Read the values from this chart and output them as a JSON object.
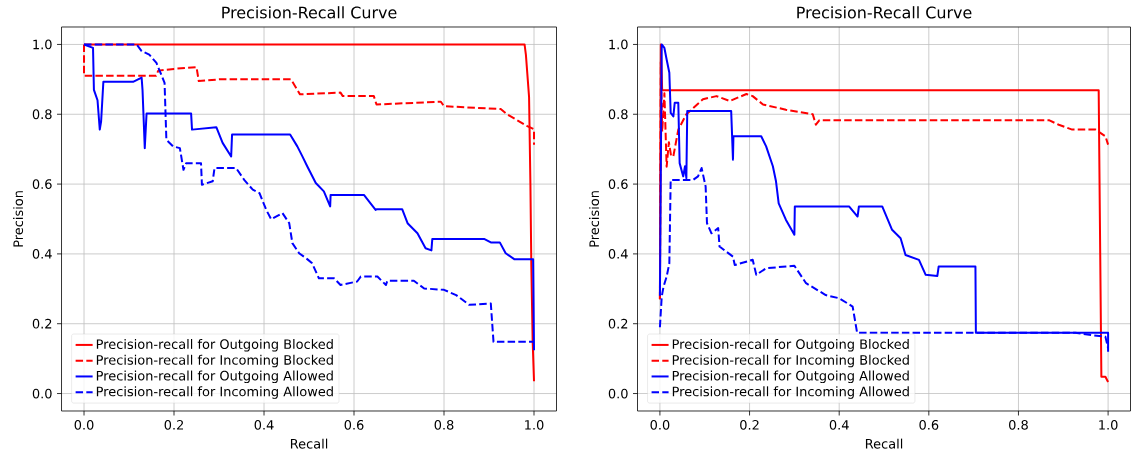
{
  "chart_data": [
    {
      "type": "line",
      "title": "Precision-Recall Curve",
      "xlabel": "Recall",
      "ylabel": "Precision",
      "xlim": [
        -0.05,
        1.05
      ],
      "ylim": [
        -0.05,
        1.05
      ],
      "xticks": [
        {
          "value": 0,
          "label": "0.0"
        },
        {
          "value": 0.2,
          "label": "0.2"
        },
        {
          "value": 0.4,
          "label": "0.4"
        },
        {
          "value": 0.6,
          "label": "0.6"
        },
        {
          "value": 0.8,
          "label": "0.8"
        },
        {
          "value": 1,
          "label": "1.0"
        }
      ],
      "yticks": [
        {
          "value": 0,
          "label": "0.0"
        },
        {
          "value": 0.2,
          "label": "0.2"
        },
        {
          "value": 0.4,
          "label": "0.4"
        },
        {
          "value": 0.6,
          "label": "0.6"
        },
        {
          "value": 0.8,
          "label": "0.8"
        },
        {
          "value": 1,
          "label": "1.0"
        }
      ],
      "grid": true,
      "legend": "bottom left",
      "marker": "none",
      "series": [
        {
          "name": "Precision-recall for Outgoing Blocked",
          "color": "#ff0000",
          "line_style": "solid",
          "x": [
            0,
            0.979,
            0.982,
            0.989,
            0.992,
            0.994,
            0.997,
            1.0
          ],
          "values": [
            1.0,
            1.0,
            0.97,
            0.85,
            0.6,
            0.37,
            0.15,
            0.035
          ]
        },
        {
          "name": "Precision-recall for Incoming Blocked",
          "color": "#ff0000",
          "line_style": "dashed",
          "x": [
            0,
            0,
            0.16,
            0.165,
            0.2,
            0.25,
            0.255,
            0.3,
            0.46,
            0.48,
            0.57,
            0.575,
            0.644,
            0.65,
            0.793,
            0.8,
            0.926,
            0.94,
            0.985,
            1.0,
            1.0
          ],
          "values": [
            1.0,
            0.91,
            0.91,
            0.925,
            0.93,
            0.935,
            0.895,
            0.9,
            0.9,
            0.857,
            0.862,
            0.852,
            0.852,
            0.828,
            0.836,
            0.823,
            0.815,
            0.8,
            0.766,
            0.757,
            0.713
          ]
        },
        {
          "name": "Precision-recall for Outgoing Allowed",
          "color": "#0000ff",
          "line_style": "solid",
          "x": [
            0,
            0.02,
            0.022,
            0.03,
            0.035,
            0.038,
            0.043,
            0.109,
            0.128,
            0.13,
            0.135,
            0.139,
            0.238,
            0.24,
            0.294,
            0.308,
            0.327,
            0.329,
            0.458,
            0.474,
            0.485,
            0.496,
            0.515,
            0.533,
            0.547,
            0.548,
            0.622,
            0.648,
            0.65,
            0.707,
            0.719,
            0.741,
            0.759,
            0.772,
            0.774,
            0.889,
            0.904,
            0.924,
            0.937,
            0.956,
            0.998,
            1.0
          ],
          "values": [
            1.0,
            0.99,
            0.87,
            0.84,
            0.756,
            0.78,
            0.893,
            0.893,
            0.905,
            0.87,
            0.703,
            0.802,
            0.802,
            0.756,
            0.763,
            0.718,
            0.679,
            0.742,
            0.742,
            0.708,
            0.68,
            0.651,
            0.603,
            0.579,
            0.536,
            0.569,
            0.569,
            0.526,
            0.528,
            0.528,
            0.488,
            0.459,
            0.416,
            0.41,
            0.443,
            0.443,
            0.433,
            0.433,
            0.402,
            0.385,
            0.385,
            0.124
          ]
        },
        {
          "name": "Precision-recall for Incoming Allowed",
          "color": "#0000ff",
          "line_style": "dashed",
          "x": [
            0,
            0.117,
            0.128,
            0.145,
            0.161,
            0.179,
            0.183,
            0.198,
            0.213,
            0.221,
            0.227,
            0.26,
            0.262,
            0.286,
            0.29,
            0.338,
            0.356,
            0.375,
            0.39,
            0.405,
            0.416,
            0.441,
            0.456,
            0.463,
            0.478,
            0.496,
            0.507,
            0.522,
            0.556,
            0.57,
            0.607,
            0.615,
            0.652,
            0.671,
            0.674,
            0.733,
            0.756,
            0.8,
            0.827,
            0.856,
            0.904,
            0.91,
            1.0
          ],
          "values": [
            1.0,
            1.0,
            0.981,
            0.971,
            0.947,
            0.89,
            0.727,
            0.708,
            0.703,
            0.641,
            0.66,
            0.66,
            0.598,
            0.608,
            0.646,
            0.646,
            0.612,
            0.584,
            0.574,
            0.526,
            0.499,
            0.517,
            0.488,
            0.431,
            0.402,
            0.385,
            0.373,
            0.33,
            0.33,
            0.311,
            0.321,
            0.335,
            0.335,
            0.311,
            0.323,
            0.323,
            0.301,
            0.297,
            0.282,
            0.254,
            0.258,
            0.148,
            0.148
          ]
        }
      ]
    },
    {
      "type": "line",
      "title": "Precision-Recall Curve",
      "xlabel": "Recall",
      "ylabel": "Precision",
      "xlim": [
        -0.05,
        1.05
      ],
      "ylim": [
        -0.05,
        1.05
      ],
      "xticks": [
        {
          "value": 0,
          "label": "0.0"
        },
        {
          "value": 0.2,
          "label": "0.2"
        },
        {
          "value": 0.4,
          "label": "0.4"
        },
        {
          "value": 0.6,
          "label": "0.6"
        },
        {
          "value": 0.8,
          "label": "0.8"
        },
        {
          "value": 1,
          "label": "1.0"
        }
      ],
      "yticks": [
        {
          "value": 0,
          "label": "0.0"
        },
        {
          "value": 0.2,
          "label": "0.2"
        },
        {
          "value": 0.4,
          "label": "0.4"
        },
        {
          "value": 0.6,
          "label": "0.6"
        },
        {
          "value": 0.8,
          "label": "0.8"
        },
        {
          "value": 1,
          "label": "1.0"
        }
      ],
      "grid": true,
      "legend": "bottom left",
      "marker": "none",
      "series": [
        {
          "name": "Precision-recall for Outgoing Blocked",
          "color": "#ff0000",
          "line_style": "solid",
          "x": [
            0,
            0.002,
            0.005,
            0.979,
            0.985,
            0.994,
            1.0
          ],
          "values": [
            0.27,
            1.0,
            0.869,
            0.869,
            0.048,
            0.048,
            0.033
          ]
        },
        {
          "name": "Precision-recall for Incoming Blocked",
          "color": "#ff0000",
          "line_style": "dashed",
          "x": [
            0,
            0.002,
            0.005,
            0.01,
            0.015,
            0.02,
            0.025,
            0.03,
            0.041,
            0.059,
            0.096,
            0.126,
            0.156,
            0.193,
            0.207,
            0.23,
            0.281,
            0.341,
            0.348,
            0.356,
            0.868,
            0.89,
            0.92,
            0.972,
            0.994,
            1.0
          ],
          "values": [
            0.27,
            0.95,
            0.75,
            0.86,
            0.65,
            0.72,
            0.68,
            0.68,
            0.756,
            0.8,
            0.843,
            0.852,
            0.838,
            0.858,
            0.852,
            0.828,
            0.813,
            0.8,
            0.77,
            0.783,
            0.783,
            0.77,
            0.756,
            0.756,
            0.737,
            0.713
          ]
        },
        {
          "name": "Precision-recall for Outgoing Allowed",
          "color": "#0000ff",
          "line_style": "solid",
          "x": [
            0,
            0.004,
            0.01,
            0.015,
            0.021,
            0.024,
            0.03,
            0.033,
            0.041,
            0.044,
            0.052,
            0.056,
            0.059,
            0.061,
            0.159,
            0.163,
            0.164,
            0.226,
            0.237,
            0.252,
            0.259,
            0.265,
            0.281,
            0.3,
            0.301,
            0.422,
            0.441,
            0.444,
            0.496,
            0.518,
            0.537,
            0.548,
            0.578,
            0.593,
            0.619,
            0.622,
            0.704,
            0.705,
            1.0,
            1.0
          ],
          "values": [
            0.28,
            1.0,
            0.99,
            0.957,
            0.919,
            0.804,
            0.794,
            0.833,
            0.833,
            0.66,
            0.622,
            0.651,
            0.617,
            0.809,
            0.809,
            0.67,
            0.737,
            0.737,
            0.708,
            0.651,
            0.608,
            0.545,
            0.498,
            0.455,
            0.536,
            0.536,
            0.507,
            0.536,
            0.536,
            0.469,
            0.445,
            0.397,
            0.383,
            0.34,
            0.337,
            0.364,
            0.364,
            0.174,
            0.174,
            0.12
          ]
        },
        {
          "name": "Precision-recall for Incoming Allowed",
          "color": "#0000ff",
          "line_style": "dashed",
          "x": [
            0,
            0.004,
            0.008,
            0.015,
            0.021,
            0.024,
            0.074,
            0.085,
            0.093,
            0.102,
            0.105,
            0.115,
            0.13,
            0.133,
            0.163,
            0.167,
            0.207,
            0.215,
            0.237,
            0.3,
            0.326,
            0.37,
            0.4,
            0.43,
            0.44,
            0.927,
            0.964,
            0.994,
            1.0
          ],
          "values": [
            0.19,
            0.277,
            0.306,
            0.335,
            0.373,
            0.612,
            0.612,
            0.622,
            0.646,
            0.593,
            0.488,
            0.459,
            0.474,
            0.421,
            0.392,
            0.368,
            0.383,
            0.34,
            0.359,
            0.366,
            0.316,
            0.282,
            0.273,
            0.249,
            0.174,
            0.174,
            0.167,
            0.163,
            0.13
          ]
        }
      ]
    }
  ]
}
